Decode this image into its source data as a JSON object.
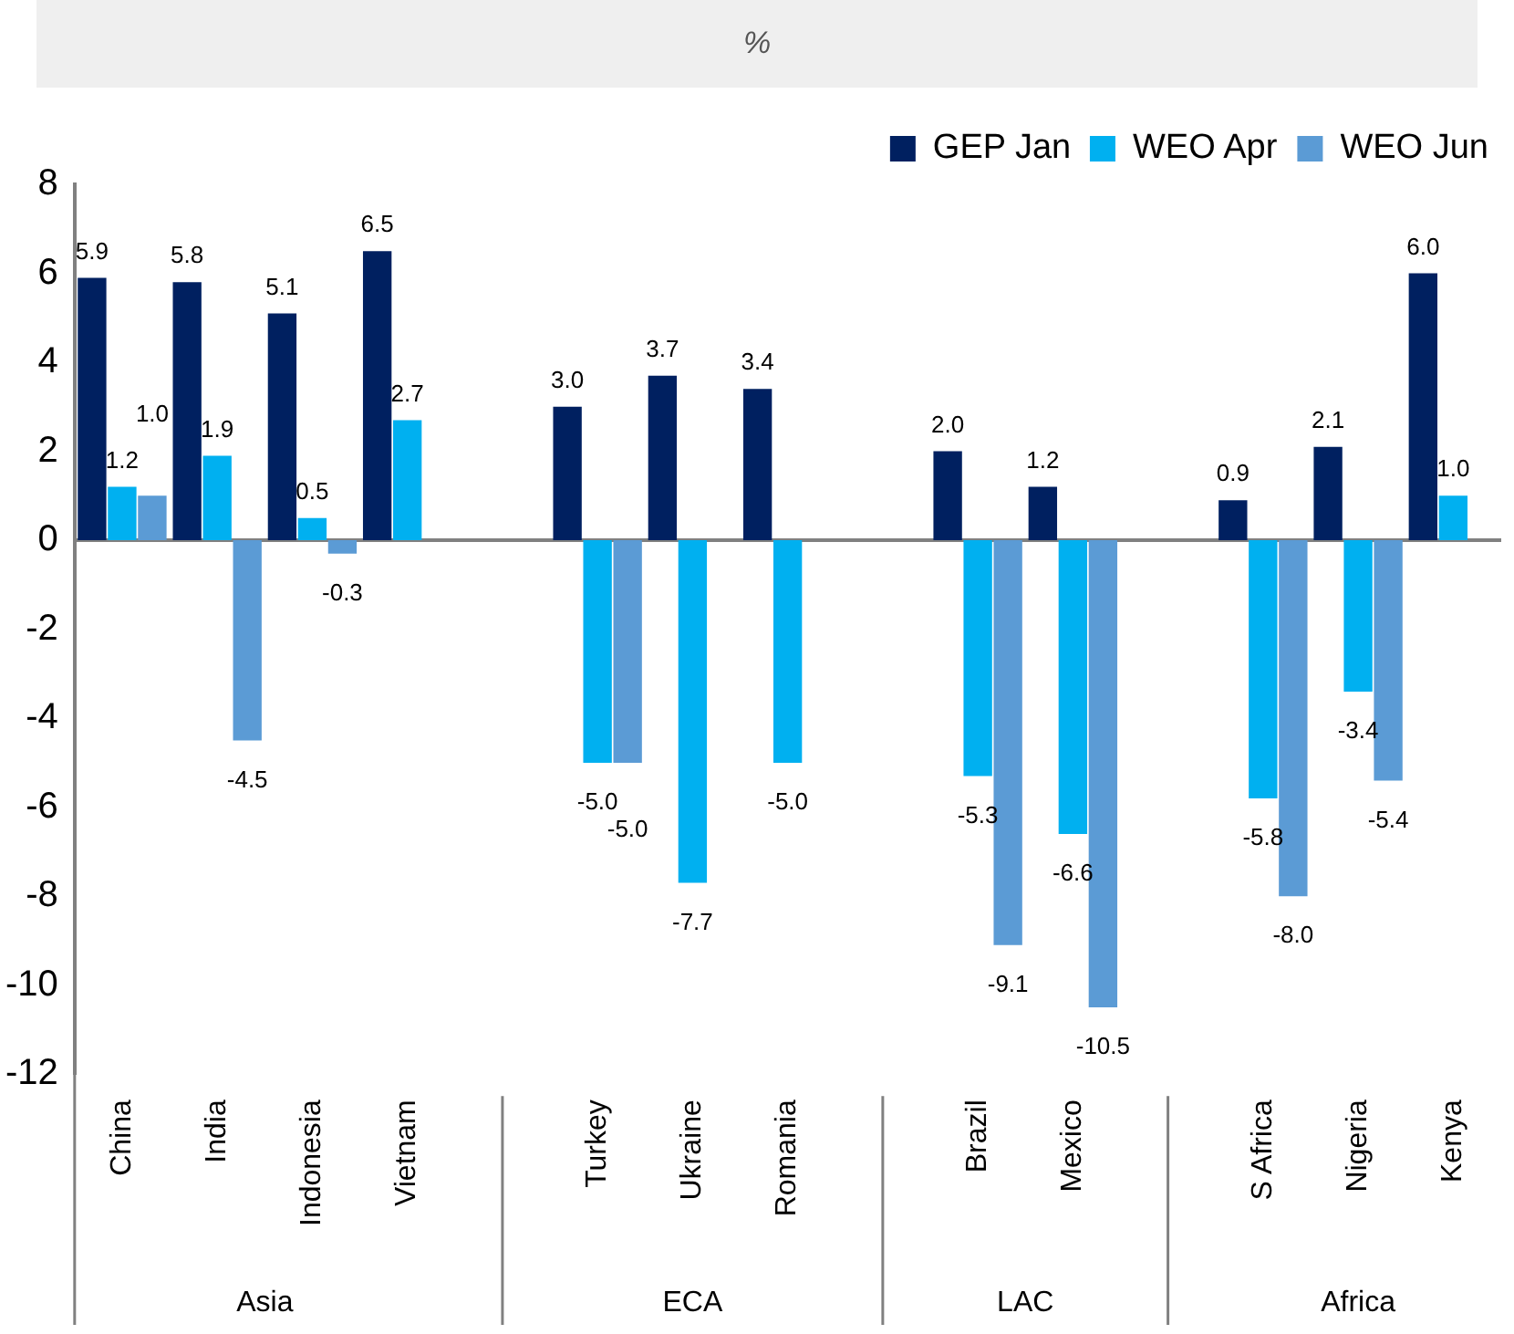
{
  "chart_data": {
    "type": "bar",
    "title": "%",
    "categories": [
      "China",
      "India",
      "Indonesia",
      "Vietnam",
      null,
      "Turkey",
      "Ukraine",
      "Romania",
      null,
      "Brazil",
      "Mexico",
      null,
      "S Africa",
      "Nigeria",
      "Kenya"
    ],
    "series": [
      {
        "name": "GEP Jan",
        "color": "#002060",
        "values": [
          5.9,
          5.8,
          5.1,
          6.5,
          null,
          3.0,
          3.7,
          3.4,
          null,
          2.0,
          1.2,
          null,
          0.9,
          2.1,
          6.0
        ],
        "value_labels": [
          "5.9",
          "5.8",
          "5.1",
          "6.5",
          null,
          "3.0",
          "3.7",
          "3.4",
          null,
          "2.0",
          "1.2",
          null,
          "0.9",
          "2.1",
          "6.0"
        ]
      },
      {
        "name": "WEO Apr",
        "color": "#00b0f0",
        "values": [
          1.2,
          1.9,
          0.5,
          2.7,
          null,
          -5.0,
          -7.7,
          -5.0,
          null,
          -5.3,
          -6.6,
          null,
          -5.8,
          -3.4,
          1.0
        ],
        "value_labels": [
          "1.2",
          "1.9",
          "0.5",
          "2.7",
          null,
          "-5.0",
          "-7.7",
          "-5.0",
          null,
          "-5.3",
          "-6.6",
          null,
          "-5.8",
          "-3.4",
          "1.0"
        ]
      },
      {
        "name": "WEO Jun",
        "color": "#5b9bd5",
        "values": [
          1.0,
          -4.5,
          -0.3,
          null,
          null,
          -5.0,
          null,
          null,
          null,
          -9.1,
          -10.5,
          null,
          -8.0,
          -5.4,
          null
        ],
        "value_labels": [
          "1.0",
          "-4.5",
          "-0.3",
          null,
          null,
          "-5.0",
          null,
          null,
          null,
          "-9.1",
          "-10.5",
          null,
          "-8.0",
          "-5.4",
          null
        ]
      }
    ],
    "annotations": [
      "Asia",
      "ECA",
      "LAC",
      "Africa"
    ],
    "ylim": [
      -12,
      8
    ],
    "yticks": [
      -12,
      -10,
      -8,
      -6,
      -4,
      -2,
      0,
      2,
      4,
      6,
      8
    ],
    "legend": "top right"
  }
}
